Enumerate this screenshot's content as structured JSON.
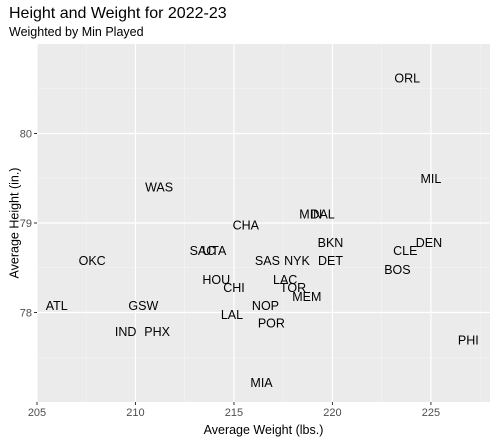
{
  "chart_data": {
    "type": "scatter",
    "title": "Height and Weight for 2022-23",
    "subtitle": "Weighted by Min Played",
    "xlabel": "Average Weight (lbs.)",
    "ylabel": "Average Height (in.)",
    "xlim": [
      205.0,
      228.0
    ],
    "ylim": [
      77.0,
      81.0
    ],
    "xticks": [
      205,
      210,
      215,
      220,
      225
    ],
    "yticks": [
      78,
      79,
      80
    ],
    "grid": true,
    "points": [
      {
        "label": "ORL",
        "x": 223.8,
        "y": 80.62
      },
      {
        "label": "MIL",
        "x": 225.0,
        "y": 79.5
      },
      {
        "label": "WAS",
        "x": 211.2,
        "y": 79.4
      },
      {
        "label": "MIN",
        "x": 218.9,
        "y": 79.1
      },
      {
        "label": "DAL",
        "x": 219.5,
        "y": 79.1
      },
      {
        "label": "CHA",
        "x": 215.6,
        "y": 78.98
      },
      {
        "label": "BKN",
        "x": 219.9,
        "y": 78.78
      },
      {
        "label": "DEN",
        "x": 224.9,
        "y": 78.78
      },
      {
        "label": "SAC",
        "x": 213.4,
        "y": 78.69
      },
      {
        "label": "UTA",
        "x": 214.0,
        "y": 78.69
      },
      {
        "label": "CLE",
        "x": 223.7,
        "y": 78.69
      },
      {
        "label": "OKC",
        "x": 207.8,
        "y": 78.58
      },
      {
        "label": "SAS",
        "x": 216.7,
        "y": 78.58
      },
      {
        "label": "NYK",
        "x": 218.2,
        "y": 78.58
      },
      {
        "label": "DET",
        "x": 219.9,
        "y": 78.58
      },
      {
        "label": "BOS",
        "x": 223.3,
        "y": 78.48
      },
      {
        "label": "HOU",
        "x": 214.1,
        "y": 78.37
      },
      {
        "label": "LAC",
        "x": 217.6,
        "y": 78.37
      },
      {
        "label": "CHI",
        "x": 215.0,
        "y": 78.28
      },
      {
        "label": "TOR",
        "x": 218.0,
        "y": 78.28
      },
      {
        "label": "MEM",
        "x": 218.7,
        "y": 78.18
      },
      {
        "label": "ATL",
        "x": 206.0,
        "y": 78.08
      },
      {
        "label": "GSW",
        "x": 210.4,
        "y": 78.08
      },
      {
        "label": "NOP",
        "x": 216.6,
        "y": 78.08
      },
      {
        "label": "LAL",
        "x": 214.9,
        "y": 77.98
      },
      {
        "label": "POR",
        "x": 216.9,
        "y": 77.88
      },
      {
        "label": "IND",
        "x": 209.5,
        "y": 77.79
      },
      {
        "label": "PHX",
        "x": 211.1,
        "y": 77.79
      },
      {
        "label": "PHI",
        "x": 226.9,
        "y": 77.69
      },
      {
        "label": "MIA",
        "x": 216.4,
        "y": 77.22
      }
    ]
  }
}
